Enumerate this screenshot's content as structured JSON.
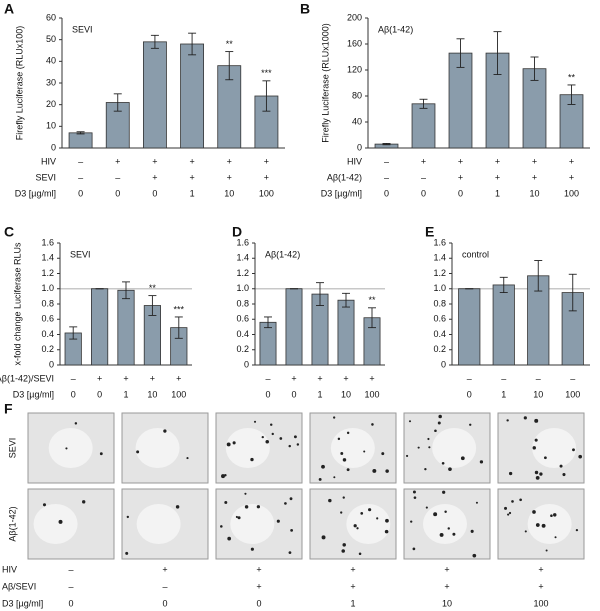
{
  "chart_data": [
    {
      "type": "bar",
      "panel": "A",
      "title": "SEVI",
      "ylabel": "Firefly Luciferase (RLUx100)",
      "color": "#8a9cab",
      "values": [
        7,
        21,
        49,
        48,
        38,
        24
      ],
      "errors": [
        0.5,
        4,
        3,
        5,
        6.5,
        7
      ],
      "significance": [
        null,
        null,
        null,
        null,
        "**",
        "***"
      ],
      "ylim": [
        0,
        60
      ],
      "yticks": [
        0,
        10,
        20,
        30,
        40,
        50,
        60
      ],
      "grid": false,
      "conditions": [
        {
          "label": "HIV",
          "cells": [
            "–",
            "+",
            "+",
            "+",
            "+",
            "+"
          ]
        },
        {
          "label": "SEVI",
          "cells": [
            "–",
            "–",
            "+",
            "+",
            "+",
            "+"
          ]
        },
        {
          "label": "D3 [µg/ml]",
          "cells": [
            "0",
            "0",
            "0",
            "1",
            "10",
            "100"
          ]
        }
      ]
    },
    {
      "type": "bar",
      "panel": "B",
      "title": "Aβ(1-42)",
      "ylabel": "Firefly Luciferase (RLUx1000)",
      "color": "#8a9cab",
      "values": [
        6,
        68,
        146,
        146,
        122,
        82
      ],
      "errors": [
        1,
        7,
        22,
        33,
        18,
        15
      ],
      "significance": [
        null,
        null,
        null,
        null,
        null,
        "**"
      ],
      "ylim": [
        0,
        200
      ],
      "yticks": [
        0,
        40,
        80,
        120,
        160,
        200
      ],
      "grid": false,
      "conditions": [
        {
          "label": "HIV",
          "cells": [
            "–",
            "+",
            "+",
            "+",
            "+",
            "+"
          ]
        },
        {
          "label": "Aβ(1-42)",
          "cells": [
            "–",
            "–",
            "+",
            "+",
            "+",
            "+"
          ]
        },
        {
          "label": "D3 [µg/ml]",
          "cells": [
            "0",
            "0",
            "0",
            "1",
            "10",
            "100"
          ]
        }
      ]
    },
    {
      "type": "bar",
      "panel": "C",
      "title": "SEVI",
      "ylabel": "x-fold change Luciferase RLUs",
      "color": "#8a9cab",
      "values": [
        0.42,
        1.0,
        0.98,
        0.78,
        0.49
      ],
      "errors": [
        0.08,
        0,
        0.11,
        0.13,
        0.14
      ],
      "significance": [
        null,
        null,
        null,
        "**",
        "***"
      ],
      "reference_line": 1,
      "ylim": [
        0,
        1.6
      ],
      "yticks": [
        0,
        0.2,
        0.4,
        0.6,
        0.8,
        {
          "value": 1,
          "label": "1.0"
        },
        1.2,
        1.4,
        1.6
      ],
      "grid": false,
      "conditions": [
        {
          "label": "Aβ(1-42)/SEVI",
          "cells": [
            "–",
            "+",
            "+",
            "+",
            "+"
          ]
        },
        {
          "label": "D3 [µg/ml]",
          "cells": [
            "0",
            "0",
            "1",
            "10",
            "100"
          ]
        }
      ]
    },
    {
      "type": "bar",
      "panel": "D",
      "title": "Aβ(1-42)",
      "color": "#8a9cab",
      "values": [
        0.56,
        1.0,
        0.93,
        0.85,
        0.62
      ],
      "errors": [
        0.07,
        0,
        0.15,
        0.09,
        0.13
      ],
      "significance": [
        null,
        null,
        null,
        null,
        "**"
      ],
      "reference_line": 1,
      "ylim": [
        0,
        1.6
      ],
      "yticks": [
        0,
        0.2,
        0.4,
        0.6,
        0.8,
        {
          "value": 1,
          "label": "1.0"
        },
        1.2,
        1.4,
        1.6
      ],
      "grid": false,
      "conditions": [
        {
          "cells": [
            "–",
            "+",
            "+",
            "+",
            "+"
          ]
        },
        {
          "cells": [
            "0",
            "0",
            "1",
            "10",
            "100"
          ]
        }
      ]
    },
    {
      "type": "bar",
      "panel": "E",
      "title": "control",
      "color": "#8a9cab",
      "values": [
        1.0,
        1.05,
        1.17,
        0.95
      ],
      "errors": [
        0,
        0.1,
        0.2,
        0.24
      ],
      "significance": [
        null,
        null,
        null,
        null
      ],
      "reference_line": 1,
      "ylim": [
        0,
        1.6
      ],
      "yticks": [
        0,
        0.2,
        0.4,
        0.6,
        0.8,
        {
          "value": 1,
          "label": "1.0"
        },
        1.2,
        1.4,
        1.6
      ],
      "grid": false,
      "conditions": [
        {
          "cells": [
            "–",
            "–",
            "–",
            "–"
          ]
        },
        {
          "cells": [
            "0",
            "1",
            "10",
            "100"
          ]
        }
      ]
    }
  ],
  "panel_f": {
    "panel": "F",
    "row_labels": [
      "SEVI",
      "Aβ(1-42)"
    ],
    "conditions": [
      {
        "label": "HIV",
        "cells": [
          "–",
          "+",
          "+",
          "+",
          "+",
          "+"
        ]
      },
      {
        "label": "Aβ/SEVI",
        "cells": [
          "–",
          "–",
          "+",
          "+",
          "+",
          "+"
        ]
      },
      {
        "label": "D3 [µg/ml]",
        "cells": [
          "0",
          "0",
          "0",
          "1",
          "10",
          "100"
        ]
      }
    ]
  }
}
